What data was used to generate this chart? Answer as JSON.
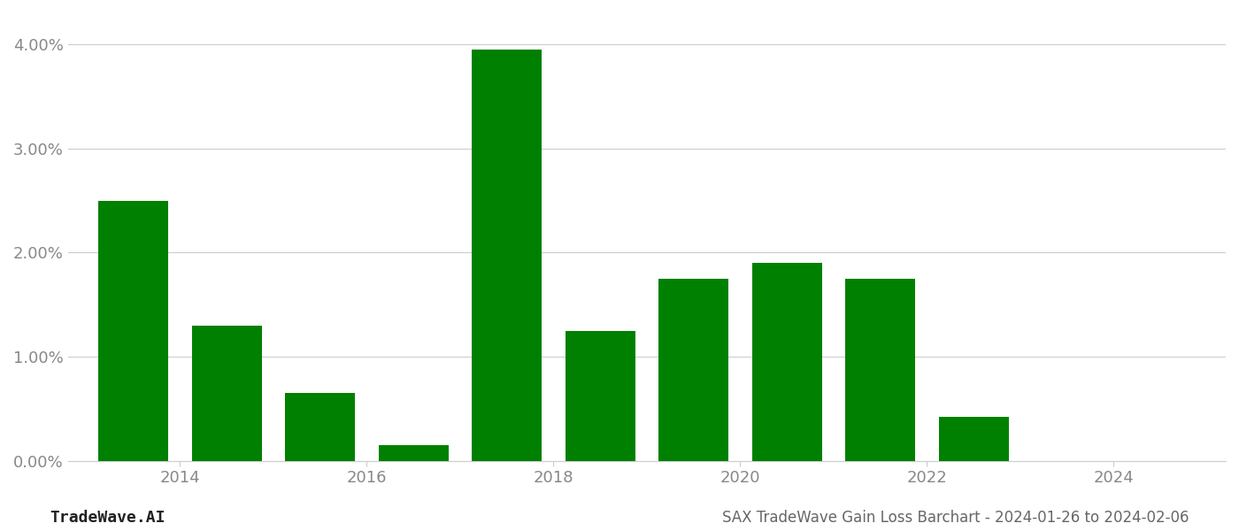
{
  "years": [
    2013,
    2014,
    2015,
    2016,
    2017,
    2018,
    2019,
    2020,
    2021,
    2022,
    2023
  ],
  "values": [
    0.025,
    0.013,
    0.0065,
    0.0015,
    0.0395,
    0.0125,
    0.0175,
    0.019,
    0.0175,
    0.0042,
    0.0
  ],
  "bar_color": "#008000",
  "background_color": "#ffffff",
  "grid_color": "#cccccc",
  "axis_label_color": "#888888",
  "title_text": "SAX TradeWave Gain Loss Barchart - 2024-01-26 to 2024-02-06",
  "watermark_text": "TradeWave.AI",
  "ylim": [
    0,
    0.043
  ],
  "yticks": [
    0.0,
    0.01,
    0.02,
    0.03,
    0.04
  ],
  "ytick_labels": [
    "0.00%",
    "1.00%",
    "2.00%",
    "3.00%",
    "4.00%"
  ],
  "xtick_positions": [
    2013.5,
    2015.5,
    2017.5,
    2019.5,
    2021.5,
    2023.5
  ],
  "xtick_labels": [
    "2014",
    "2016",
    "2018",
    "2020",
    "2022",
    "2024"
  ],
  "bar_width": 0.75,
  "xlim": [
    2012.3,
    2024.7
  ]
}
